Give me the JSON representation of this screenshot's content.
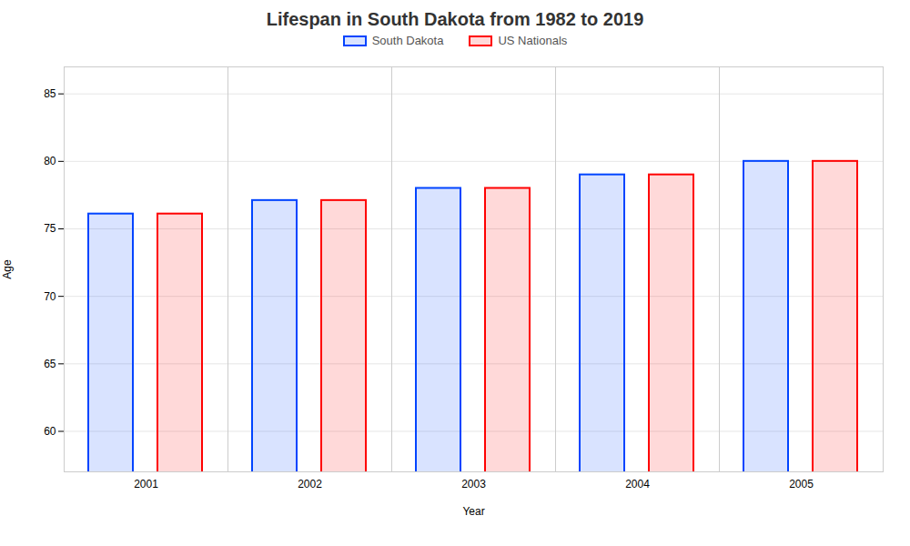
{
  "chart_data": {
    "type": "bar",
    "title": "Lifespan in South Dakota from 1982 to 2019",
    "xlabel": "Year",
    "ylabel": "Age",
    "categories": [
      "2001",
      "2002",
      "2003",
      "2004",
      "2005"
    ],
    "series": [
      {
        "name": "South Dakota",
        "color": "#0044ff",
        "values": [
          76.1,
          77.1,
          78.0,
          79.0,
          80.0
        ]
      },
      {
        "name": "US Nationals",
        "color": "#ff0000",
        "values": [
          76.1,
          77.1,
          78.0,
          79.0,
          80.0
        ]
      }
    ],
    "ylim": [
      57,
      87
    ],
    "yticks": [
      60,
      65,
      70,
      75,
      80,
      85
    ],
    "grid": true,
    "legend": "top"
  }
}
